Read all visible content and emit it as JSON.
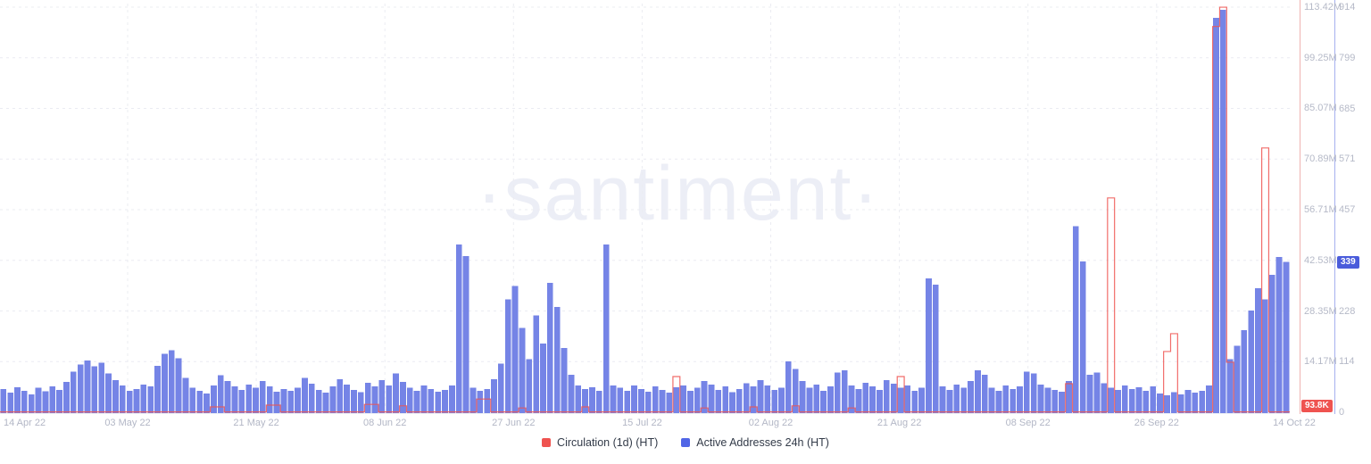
{
  "watermark": "·santiment·",
  "chart_data": {
    "type": "combo",
    "watermark": "·santiment·",
    "x_axis": {
      "start": "14 Apr 22",
      "end": "14 Oct 22",
      "frequency": "daily",
      "tick_labels": [
        "14 Apr 22",
        "03 May 22",
        "21 May 22",
        "08 Jun 22",
        "27 Jun 22",
        "15 Jul 22",
        "02 Aug 22",
        "21 Aug 22",
        "08 Sep 22",
        "26 Sep 22",
        "14 Oct 22"
      ]
    },
    "grid": {
      "horizontal": true,
      "vertical": true,
      "style": "dashed",
      "color": "#ebecf2"
    },
    "series": [
      {
        "name": "Circulation (1d) (HT)",
        "type": "line",
        "color": "#ef5350",
        "axis_side": "right-inner",
        "axis": {
          "ticks": [
            "113.42M",
            "99.25M",
            "85.07M",
            "70.89M",
            "56.71M",
            "42.53M",
            "28.35M",
            "14.17M"
          ],
          "line_color": "#efb3b1",
          "last_value": "93.8K",
          "badge_color": "#ef5350"
        },
        "values_millions": [
          0.09,
          0.09,
          0.09,
          0.09,
          0.09,
          0.09,
          0.09,
          0.09,
          0.09,
          0.09,
          0.09,
          0.09,
          0.09,
          0.09,
          0.09,
          0.09,
          0.09,
          0.09,
          0.09,
          0.09,
          0.09,
          0.09,
          0.09,
          0.09,
          0.09,
          0.09,
          0.09,
          0.09,
          0.09,
          0.09,
          1.5,
          1.5,
          0.09,
          0.09,
          0.09,
          0.09,
          0.09,
          0.09,
          2,
          2,
          0.09,
          0.09,
          0.09,
          0.09,
          0.09,
          0.09,
          0.09,
          0.09,
          0.09,
          0.09,
          0.09,
          0.09,
          2.2,
          2.2,
          0.09,
          0.09,
          0.09,
          1.8,
          0.09,
          0.09,
          0.09,
          0.09,
          0.09,
          0.09,
          0.09,
          0.09,
          0.09,
          0.09,
          3.7,
          3.7,
          0.09,
          0.09,
          0.09,
          0.09,
          1.2,
          0.09,
          0.09,
          0.09,
          0.09,
          0.09,
          0.09,
          0.09,
          0.09,
          1.5,
          0.09,
          0.09,
          0.09,
          0.09,
          0.09,
          0.09,
          0.09,
          0.09,
          0.09,
          0.09,
          0.09,
          0.09,
          10,
          0.09,
          0.09,
          0.09,
          1.2,
          0.09,
          0.09,
          0.09,
          0.09,
          0.09,
          0.09,
          1.5,
          0.09,
          0.09,
          0.09,
          0.09,
          0.09,
          1.8,
          0.09,
          0.09,
          0.09,
          0.09,
          0.09,
          0.09,
          0.09,
          1.2,
          0.09,
          0.09,
          0.09,
          0.09,
          0.09,
          0.09,
          10,
          0.09,
          0.09,
          0.09,
          0.09,
          0.09,
          0.09,
          0.09,
          0.09,
          0.09,
          0.09,
          0.09,
          0.09,
          0.09,
          0.09,
          0.09,
          0.09,
          0.09,
          0.09,
          0.09,
          0.09,
          0.09,
          0.09,
          0.09,
          8,
          0.09,
          0.09,
          0.09,
          0.09,
          0.09,
          60,
          0.09,
          0.09,
          0.09,
          0.09,
          0.09,
          0.09,
          0.09,
          17,
          22,
          0.09,
          0.09,
          0.09,
          0.09,
          0.09,
          108,
          113.4,
          14,
          0.09,
          0.09,
          0.09,
          0.09,
          74,
          0.09,
          0.09,
          0.094
        ]
      },
      {
        "name": "Active Addresses 24h (HT)",
        "type": "bar",
        "color": "#7584e6",
        "axis_side": "right-outer",
        "axis": {
          "ticks": [
            "914",
            "799",
            "685",
            "571",
            "457",
            "228",
            "114",
            "0"
          ],
          "line_color": "#a6b0ee",
          "last_value": "339",
          "badge_color": "#4a5cdb"
        },
        "values": [
          52,
          44,
          56,
          48,
          40,
          55,
          47,
          58,
          50,
          68,
          92,
          108,
          117,
          104,
          112,
          88,
          72,
          60,
          48,
          52,
          62,
          58,
          105,
          132,
          140,
          122,
          78,
          55,
          48,
          42,
          60,
          84,
          70,
          58,
          50,
          62,
          55,
          70,
          58,
          46,
          52,
          48,
          55,
          78,
          64,
          50,
          44,
          58,
          74,
          62,
          50,
          45,
          66,
          58,
          72,
          60,
          88,
          68,
          55,
          48,
          60,
          52,
          46,
          50,
          60,
          378,
          352,
          55,
          48,
          52,
          75,
          110,
          255,
          285,
          190,
          120,
          218,
          155,
          292,
          238,
          145,
          85,
          60,
          52,
          56,
          48,
          378,
          60,
          55,
          48,
          60,
          52,
          46,
          58,
          50,
          44,
          56,
          60,
          48,
          55,
          70,
          62,
          50,
          58,
          45,
          52,
          65,
          58,
          72,
          60,
          50,
          55,
          115,
          98,
          70,
          55,
          62,
          48,
          58,
          90,
          95,
          60,
          52,
          66,
          58,
          50,
          72,
          64,
          55,
          60,
          48,
          55,
          302,
          288,
          58,
          50,
          62,
          55,
          70,
          95,
          85,
          55,
          48,
          60,
          52,
          58,
          92,
          88,
          62,
          55,
          50,
          46,
          70,
          420,
          340,
          85,
          90,
          65,
          55,
          50,
          60,
          52,
          56,
          48,
          58,
          42,
          38,
          45,
          40,
          50,
          44,
          48,
          60,
          890,
          908,
          120,
          150,
          185,
          230,
          280,
          255,
          310,
          350,
          339
        ]
      }
    ]
  },
  "legend": {
    "items": [
      {
        "label": "Circulation (1d) (HT)",
        "color": "#ef5350"
      },
      {
        "label": "Active Addresses 24h (HT)",
        "color": "#5166e6"
      }
    ]
  }
}
